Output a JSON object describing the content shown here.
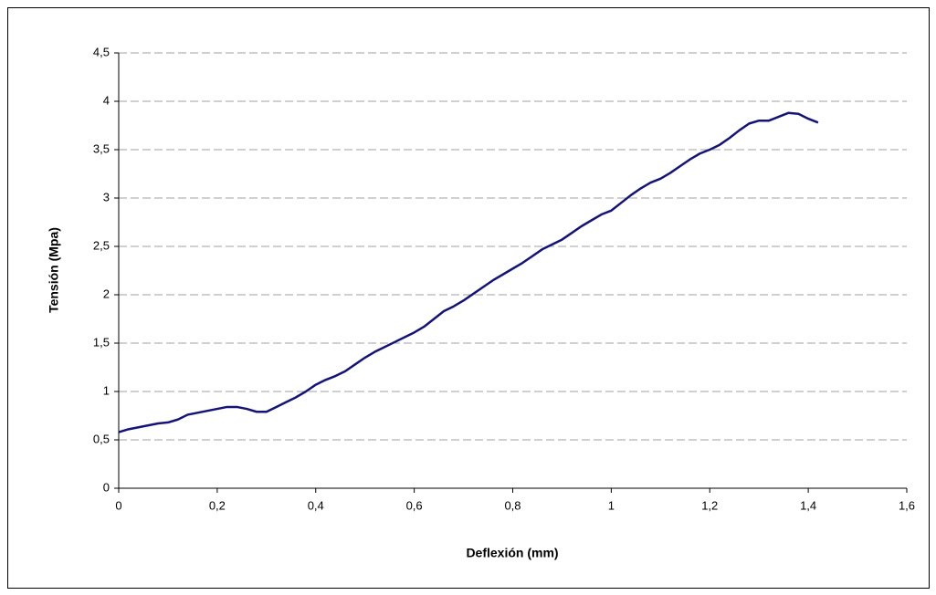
{
  "chart_data": {
    "type": "line",
    "xlabel": "Deflexión (mm)",
    "ylabel": "Tensión (Mpa)",
    "x": [
      0,
      0.02,
      0.04,
      0.06,
      0.08,
      0.1,
      0.12,
      0.14,
      0.16,
      0.18,
      0.2,
      0.22,
      0.24,
      0.26,
      0.28,
      0.3,
      0.32,
      0.34,
      0.36,
      0.38,
      0.4,
      0.42,
      0.44,
      0.46,
      0.48,
      0.5,
      0.52,
      0.54,
      0.56,
      0.58,
      0.6,
      0.62,
      0.64,
      0.66,
      0.68,
      0.7,
      0.72,
      0.74,
      0.76,
      0.78,
      0.8,
      0.82,
      0.84,
      0.86,
      0.88,
      0.9,
      0.92,
      0.94,
      0.96,
      0.98,
      1.0,
      1.02,
      1.04,
      1.06,
      1.08,
      1.1,
      1.12,
      1.14,
      1.16,
      1.18,
      1.2,
      1.22,
      1.24,
      1.26,
      1.28,
      1.3,
      1.32,
      1.34,
      1.36,
      1.38,
      1.4,
      1.42
    ],
    "series": [
      {
        "color": "#141478",
        "values": [
          0.58,
          0.61,
          0.63,
          0.65,
          0.67,
          0.68,
          0.71,
          0.76,
          0.78,
          0.8,
          0.82,
          0.84,
          0.84,
          0.82,
          0.79,
          0.79,
          0.84,
          0.89,
          0.94,
          1.0,
          1.07,
          1.12,
          1.16,
          1.21,
          1.28,
          1.35,
          1.41,
          1.46,
          1.51,
          1.56,
          1.61,
          1.67,
          1.75,
          1.83,
          1.88,
          1.94,
          2.01,
          2.08,
          2.15,
          2.21,
          2.27,
          2.33,
          2.4,
          2.47,
          2.52,
          2.57,
          2.64,
          2.71,
          2.77,
          2.83,
          2.87,
          2.95,
          3.03,
          3.1,
          3.16,
          3.2,
          3.26,
          3.33,
          3.4,
          3.46,
          3.5,
          3.55,
          3.62,
          3.7,
          3.77,
          3.8,
          3.8,
          3.84,
          3.88,
          3.87,
          3.82,
          3.78
        ]
      }
    ],
    "xlim": [
      0,
      1.6
    ],
    "xticks": [
      0,
      {
        "value": 0.2,
        "label": "0,2"
      },
      {
        "value": 0.4,
        "label": "0,4"
      },
      {
        "value": 0.6,
        "label": "0,6"
      },
      {
        "value": 0.8,
        "label": "0,8"
      },
      1,
      {
        "value": 1.2,
        "label": "1,2"
      },
      {
        "value": 1.4,
        "label": "1,4"
      },
      {
        "value": 1.6,
        "label": "1,6"
      }
    ],
    "ylim": [
      0,
      4.5
    ],
    "yticks": [
      0,
      {
        "value": 0.5,
        "label": "0,5"
      },
      1,
      {
        "value": 1.5,
        "label": "1,5"
      },
      2,
      {
        "value": 2.5,
        "label": "2,5"
      },
      3,
      {
        "value": 3.5,
        "label": "3,5"
      },
      4,
      {
        "value": 4.5,
        "label": "4,5"
      }
    ],
    "grid": true
  }
}
